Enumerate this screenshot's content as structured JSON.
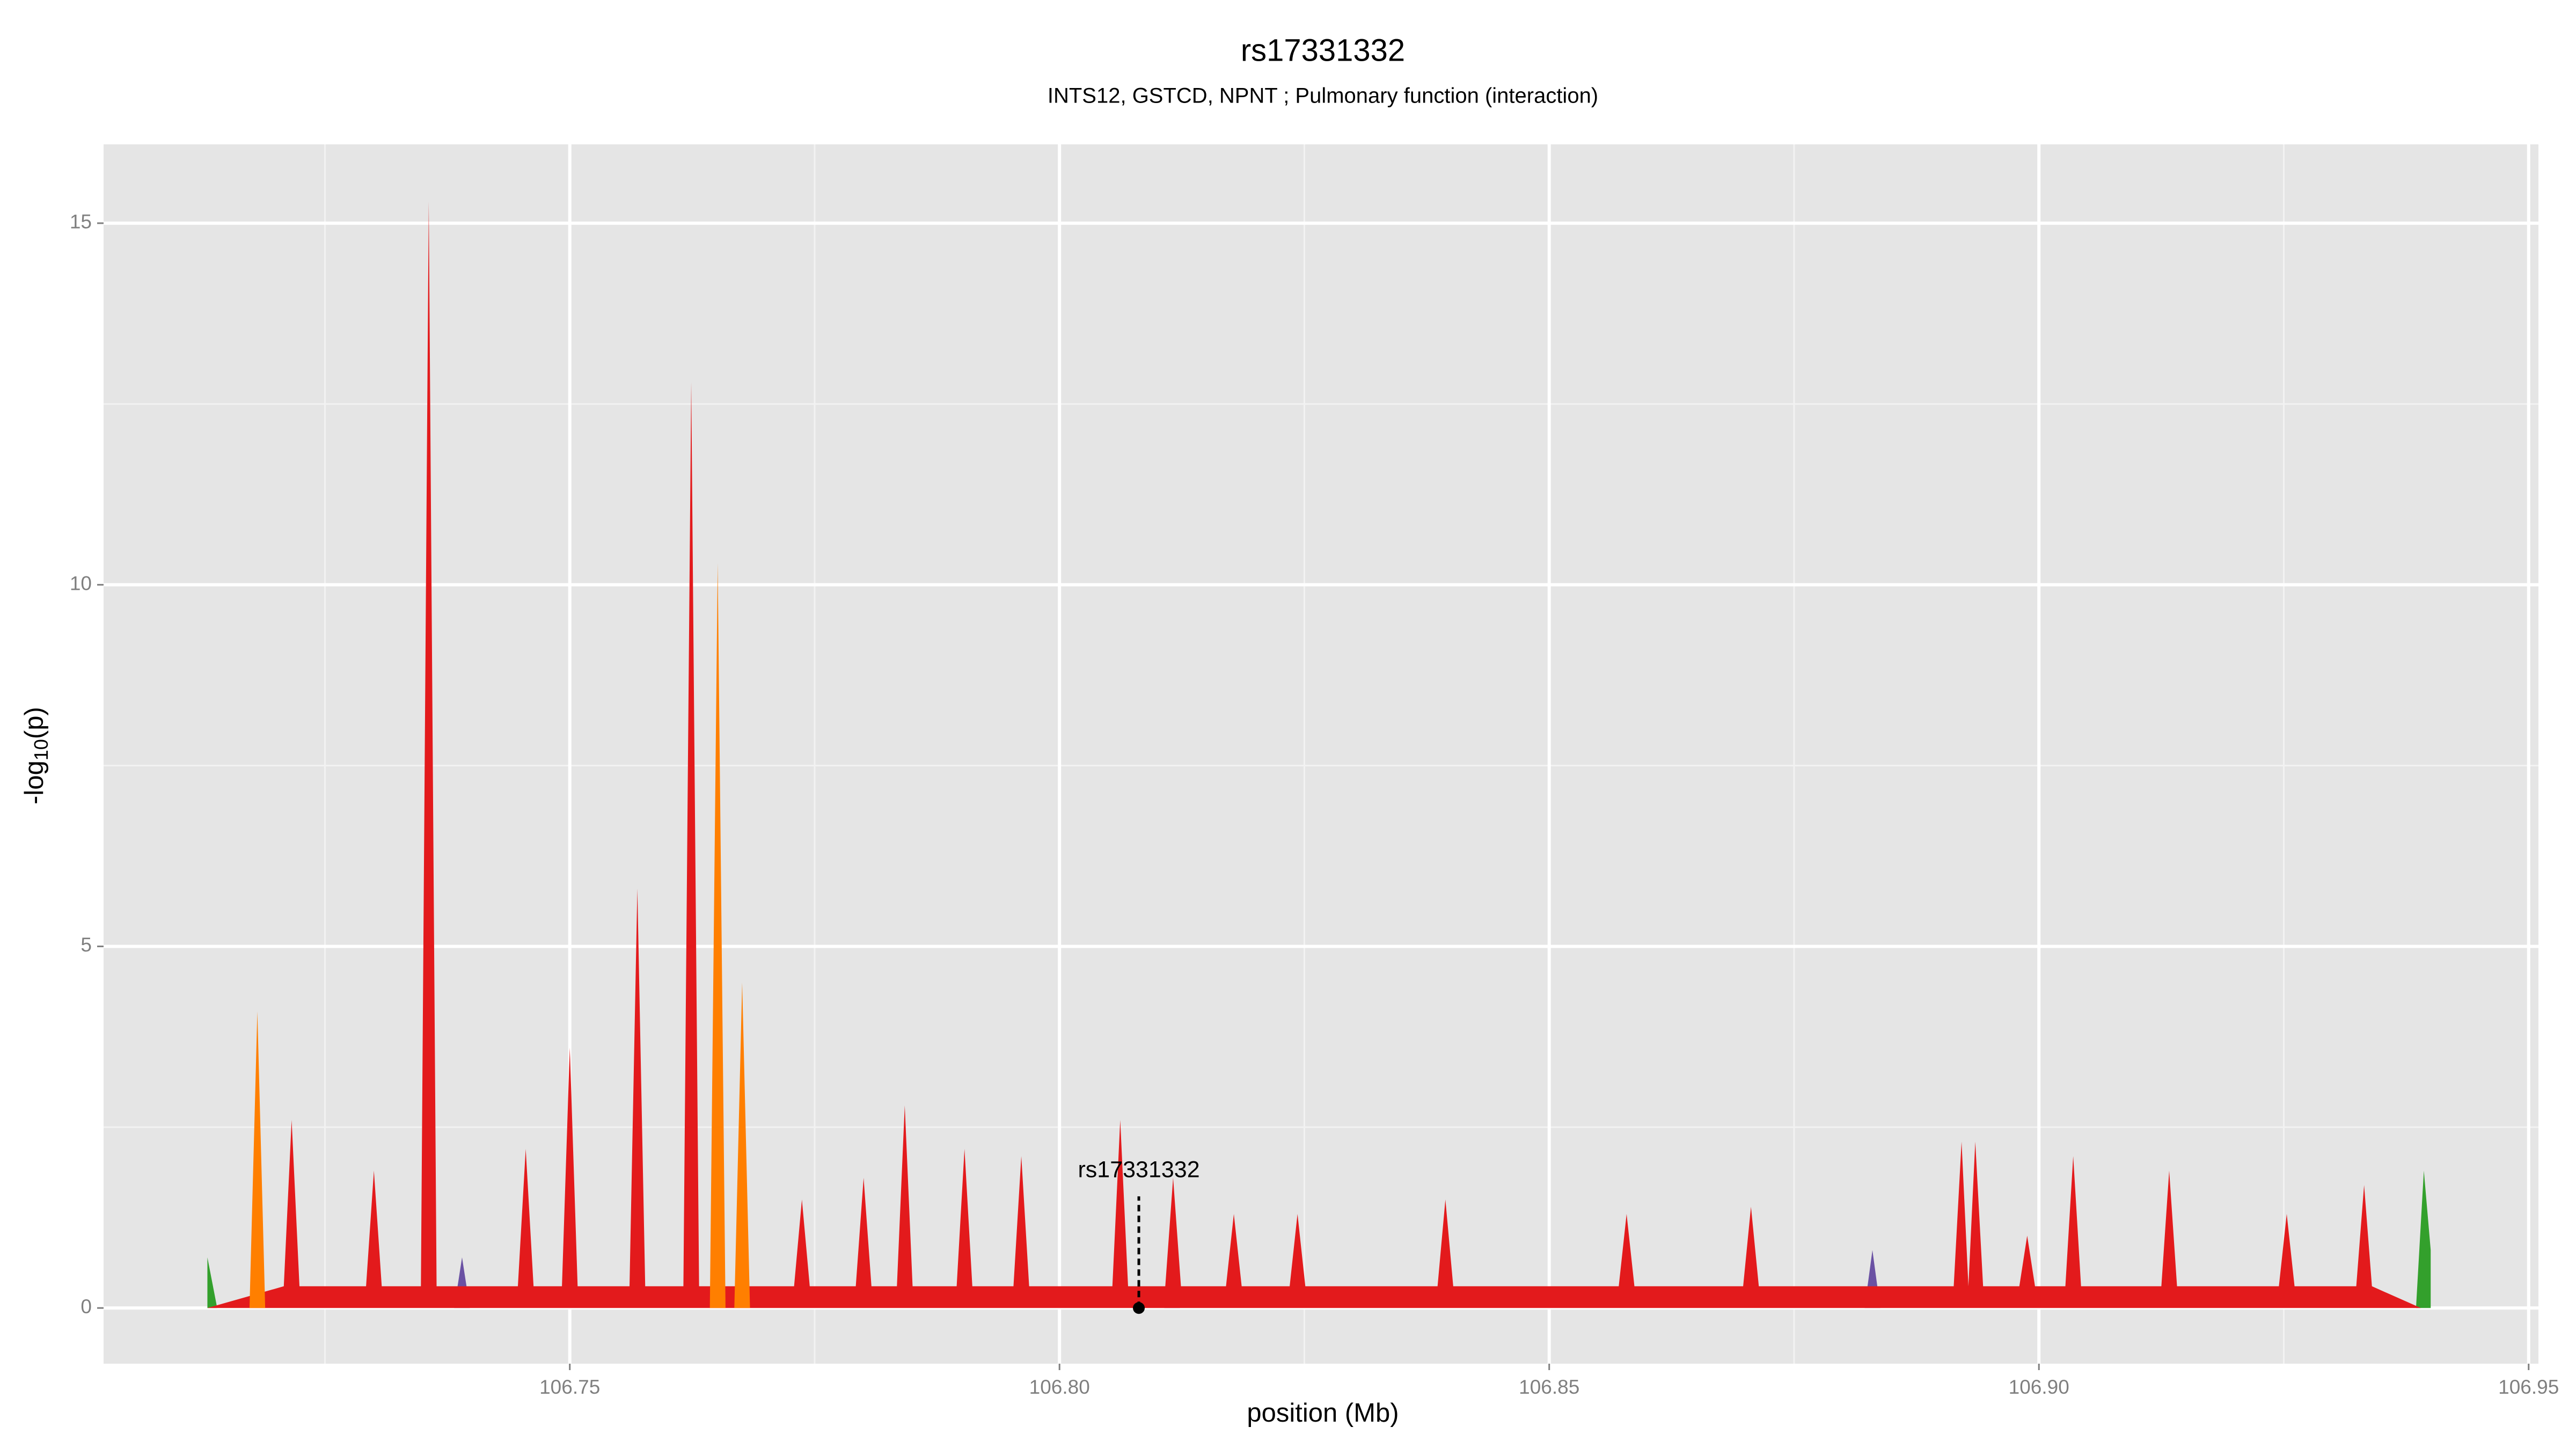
{
  "chart_data": {
    "type": "area",
    "title": "rs17331332",
    "subtitle": "INTS12,  GSTCD,  NPNT ; Pulmonary function (interaction)",
    "xlabel": "position (Mb)",
    "ylabel": {
      "prefix": "-log",
      "sub": "10",
      "suffix": "(p)"
    },
    "xlim": [
      106.7024,
      106.951
    ],
    "ylim": [
      -0.77,
      16.09
    ],
    "xticks": [
      106.75,
      {
        "value": 106.8,
        "label": "106.80"
      },
      106.85,
      {
        "value": 106.9,
        "label": "106.90"
      },
      106.95
    ],
    "yticks": [
      0,
      5,
      10,
      15
    ],
    "x_minor_grid": [
      106.725,
      106.775,
      106.825,
      106.875,
      106.925
    ],
    "y_minor_grid": [
      2.5,
      7.5,
      12.5
    ],
    "grid": true,
    "background": "#e5e5e5",
    "series": [
      {
        "color": "#33a02c",
        "x": [
          106.713,
          106.714,
          106.9385,
          106.9393,
          106.94
        ],
        "values": [
          0.7,
          0,
          0,
          1.9,
          0.8
        ]
      },
      {
        "color": "#6a51a3",
        "x": [
          106.7382,
          106.739,
          106.7398,
          106.8107,
          106.8115,
          106.8123,
          106.8822,
          106.883,
          106.8838
        ],
        "values": [
          0,
          0.7,
          0,
          0,
          0.6,
          0,
          0,
          0.8,
          0
        ]
      },
      {
        "color": "#e31a1c",
        "x": [
          106.713,
          106.7208,
          106.7216,
          106.7224,
          106.7292,
          106.73,
          106.7308,
          106.7348,
          106.7356,
          106.7364,
          106.7447,
          106.7455,
          106.7463,
          106.7492,
          106.75,
          106.7508,
          106.7561,
          106.7569,
          106.7577,
          106.7616,
          106.7624,
          106.7632,
          106.7729,
          106.7737,
          106.7745,
          106.7792,
          106.78,
          106.7808,
          106.7834,
          106.7842,
          106.785,
          106.7895,
          106.7903,
          106.7911,
          106.7953,
          106.7961,
          106.7969,
          106.8054,
          106.8062,
          106.807,
          106.8108,
          106.8116,
          106.8124,
          106.817,
          106.8178,
          106.8186,
          106.8235,
          106.8243,
          106.8251,
          106.8386,
          106.8394,
          106.8402,
          106.8571,
          106.8579,
          106.8587,
          106.8698,
          106.8706,
          106.8714,
          106.8913,
          106.8921,
          106.8928,
          106.8935,
          106.8943,
          106.898,
          106.8988,
          106.8996,
          106.9027,
          106.9035,
          106.9043,
          106.9125,
          106.9133,
          106.9141,
          106.9245,
          106.9253,
          106.9261,
          106.9324,
          106.9332,
          106.934,
          106.939
        ],
        "values": [
          0,
          0.3,
          2.6,
          0.3,
          0.3,
          1.9,
          0.3,
          0.3,
          15.3,
          0.3,
          0.3,
          2.2,
          0.3,
          0.3,
          3.6,
          0.3,
          0.3,
          5.8,
          0.3,
          0.3,
          12.8,
          0.3,
          0.3,
          1.5,
          0.3,
          0.3,
          1.8,
          0.3,
          0.3,
          2.8,
          0.3,
          0.3,
          2.2,
          0.3,
          0.3,
          2.1,
          0.3,
          0.3,
          2.6,
          0.3,
          0.3,
          1.8,
          0.3,
          0.3,
          1.3,
          0.3,
          0.3,
          1.3,
          0.3,
          0.3,
          1.5,
          0.3,
          0.3,
          1.3,
          0.3,
          0.3,
          1.4,
          0.3,
          0.3,
          2.3,
          0.3,
          2.3,
          0.3,
          0.3,
          1.0,
          0.3,
          0.3,
          2.1,
          0.3,
          0.3,
          1.9,
          0.3,
          0.3,
          1.3,
          0.3,
          0.3,
          1.7,
          0.3,
          0
        ]
      },
      {
        "color": "#ff7f00",
        "x": [
          106.7173,
          106.7181,
          106.7189,
          106.7643,
          106.7651,
          106.7659,
          106.7668,
          106.7676,
          106.7684
        ],
        "values": [
          0,
          4.1,
          0,
          0,
          10.3,
          0,
          0,
          4.5,
          0
        ]
      }
    ],
    "annotation": {
      "text": "rs17331332",
      "x": 106.8081,
      "y": 0
    }
  }
}
